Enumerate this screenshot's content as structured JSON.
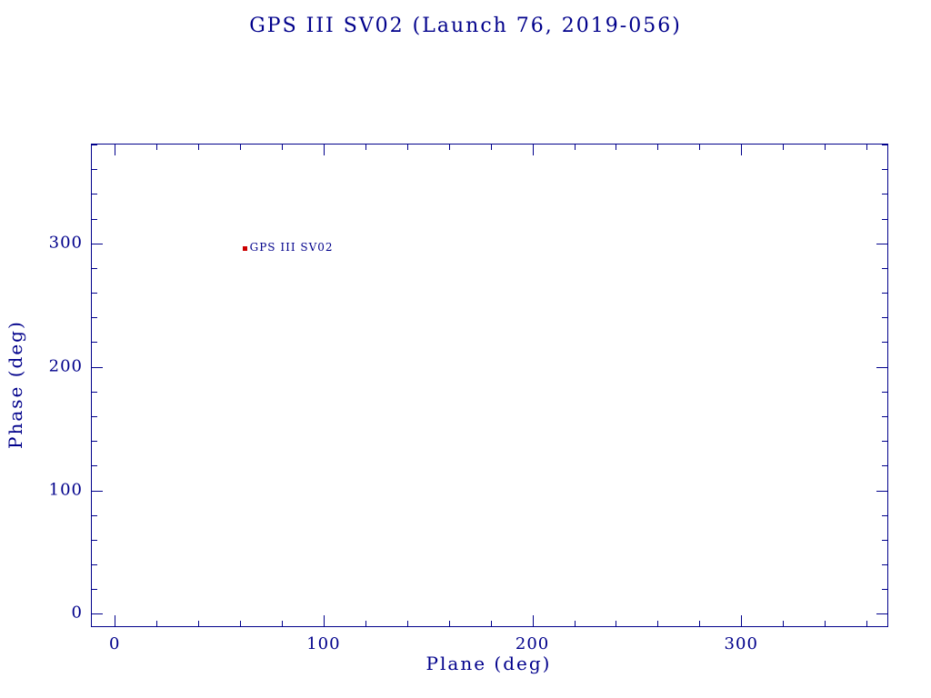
{
  "chart_data": {
    "type": "scatter",
    "title": "GPS III SV02 (Launch 76, 2019-056)",
    "xlabel": "Plane (deg)",
    "ylabel": "Phase (deg)",
    "xlim": [
      -11,
      370
    ],
    "ylim": [
      -10,
      380
    ],
    "x_major_ticks": [
      0,
      100,
      200,
      300
    ],
    "y_major_ticks": [
      0,
      100,
      200,
      300
    ],
    "minor_tick_step": 20,
    "grid": false,
    "legend": "none",
    "points": [
      {
        "label": "GPS III SV02",
        "x": 62,
        "y": 296,
        "marker": "square"
      }
    ],
    "colors": {
      "axis": "#00008b",
      "text": "#00008b",
      "marker": "#cc0000"
    }
  }
}
